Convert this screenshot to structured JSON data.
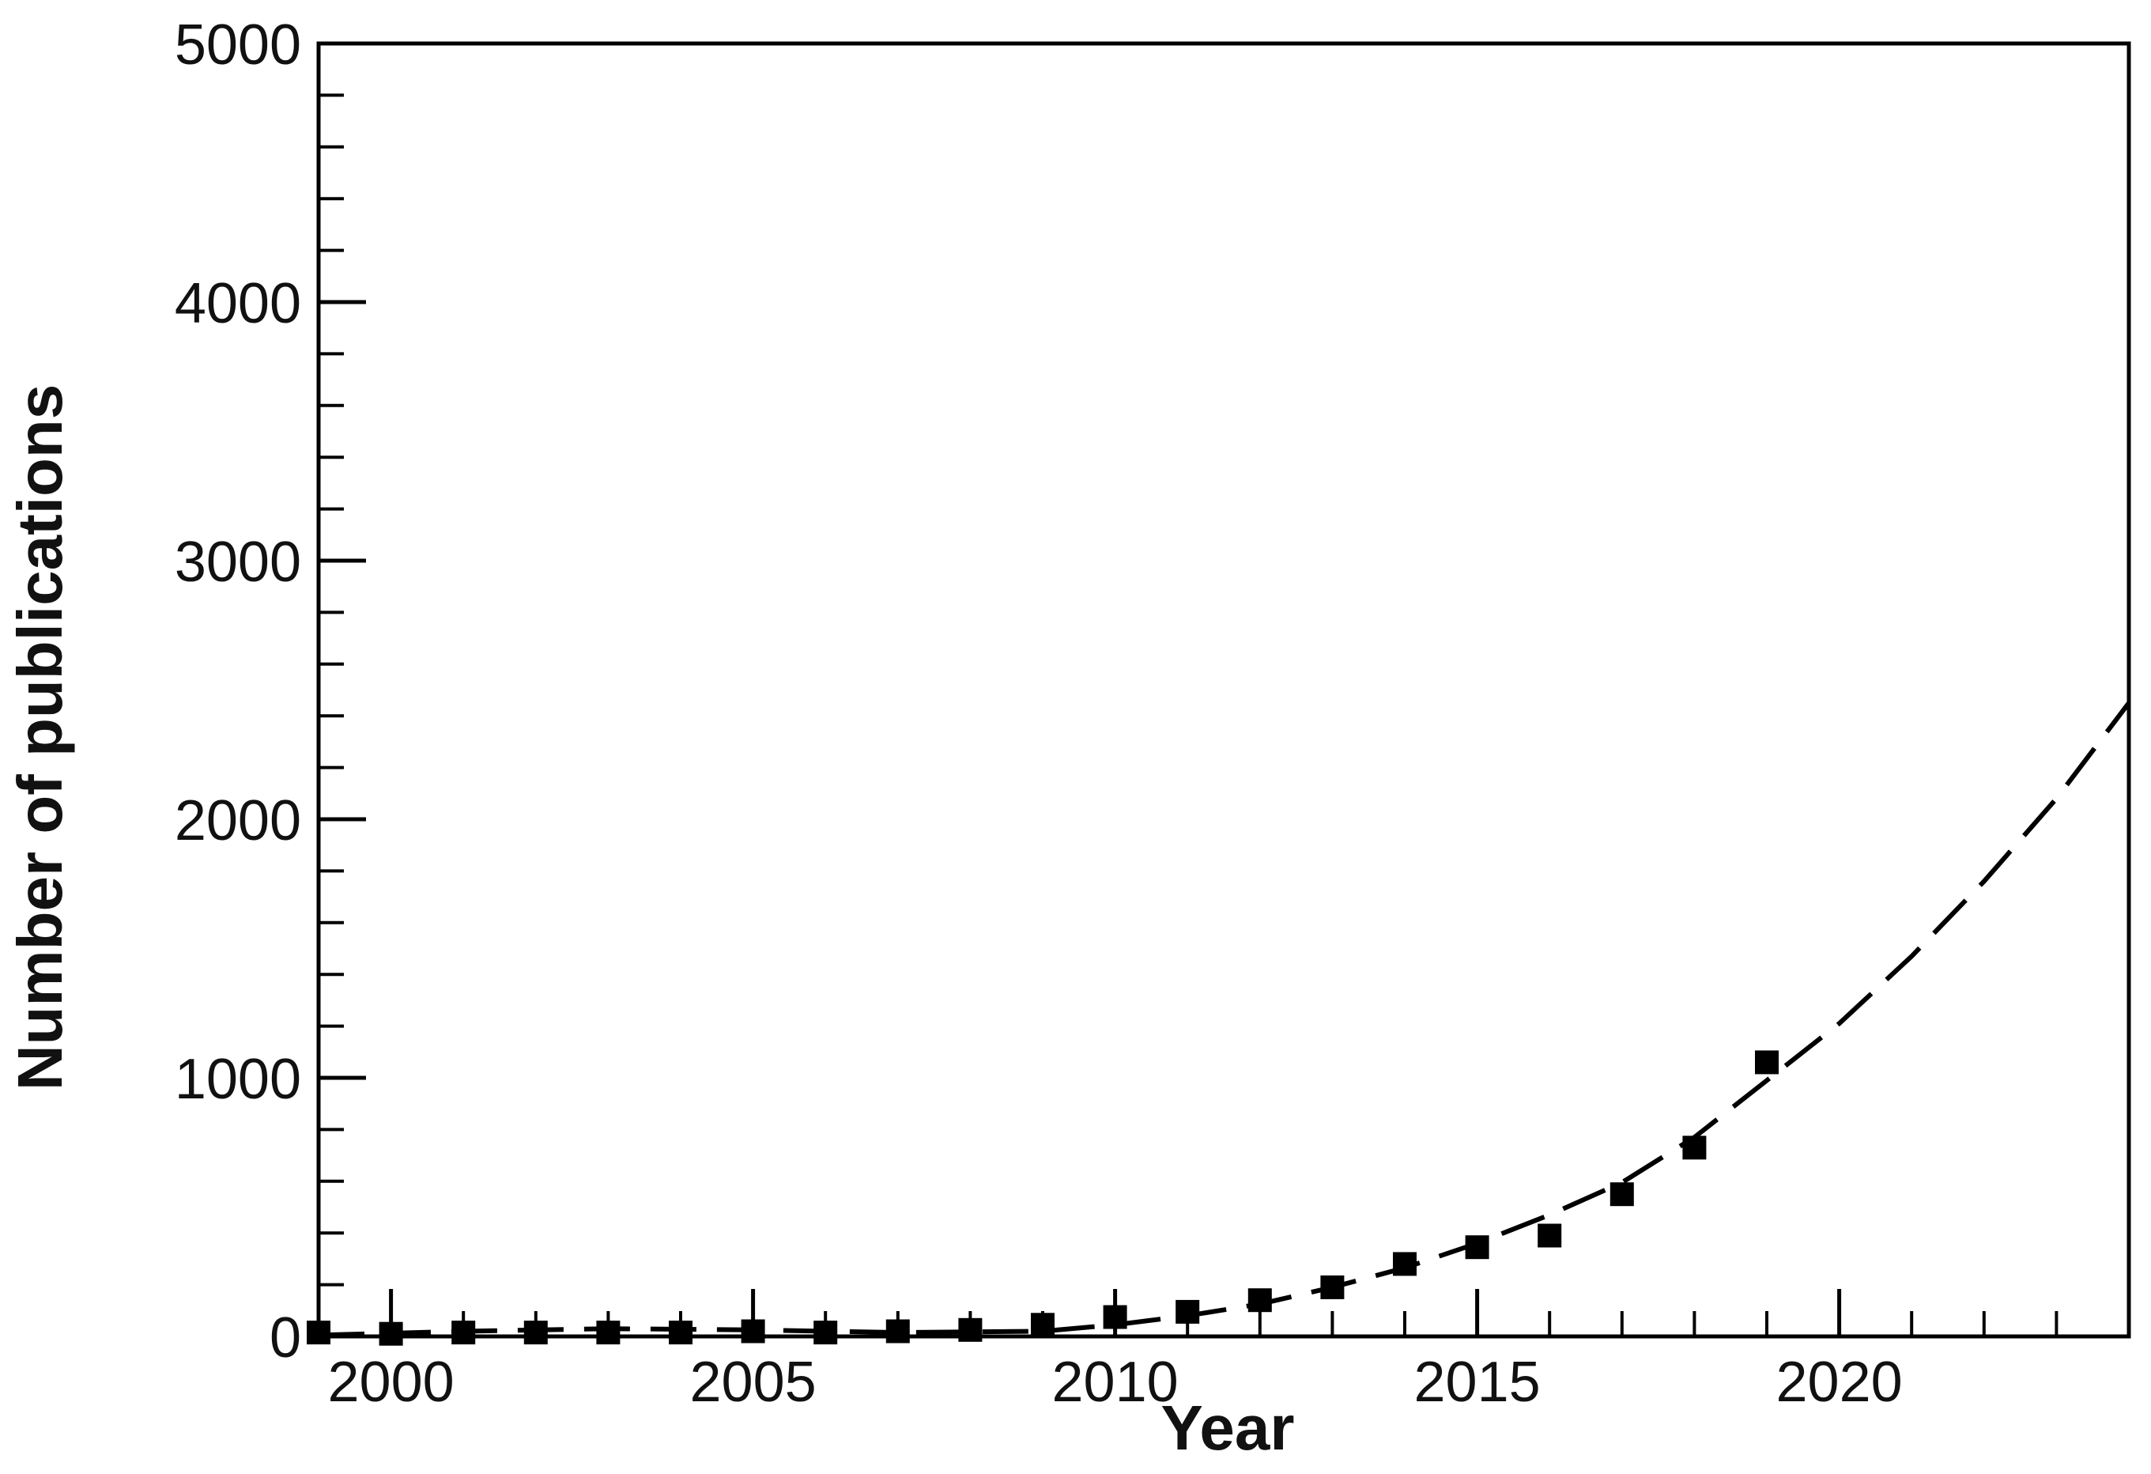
{
  "chart_data": {
    "type": "scatter",
    "title": "",
    "xlabel": "Year",
    "ylabel": "Number of publications",
    "xlim": [
      1999,
      2024
    ],
    "ylim": [
      0,
      5000
    ],
    "x_ticks": [
      2000,
      2005,
      2010,
      2015,
      2020
    ],
    "y_ticks": [
      0,
      1000,
      2000,
      3000,
      4000,
      5000
    ],
    "grid": false,
    "legend": "none",
    "series": [
      {
        "style": "markers",
        "marker": "square",
        "color": "#000000",
        "points": [
          {
            "x": 1999,
            "y": 15
          },
          {
            "x": 2000,
            "y": 10
          },
          {
            "x": 2001,
            "y": 15
          },
          {
            "x": 2002,
            "y": 15
          },
          {
            "x": 2003,
            "y": 15
          },
          {
            "x": 2004,
            "y": 15
          },
          {
            "x": 2005,
            "y": 20
          },
          {
            "x": 2006,
            "y": 15
          },
          {
            "x": 2007,
            "y": 20
          },
          {
            "x": 2008,
            "y": 25
          },
          {
            "x": 2009,
            "y": 45
          },
          {
            "x": 2010,
            "y": 75
          },
          {
            "x": 2011,
            "y": 95
          },
          {
            "x": 2012,
            "y": 140
          },
          {
            "x": 2013,
            "y": 190
          },
          {
            "x": 2014,
            "y": 280
          },
          {
            "x": 2015,
            "y": 345
          },
          {
            "x": 2016,
            "y": 390
          },
          {
            "x": 2017,
            "y": 550
          },
          {
            "x": 2018,
            "y": 730
          },
          {
            "x": 2019,
            "y": 1060
          }
        ]
      },
      {
        "style": "dashed-line",
        "color": "#000000",
        "points": [
          {
            "x": 1999,
            "y": 5
          },
          {
            "x": 2001,
            "y": 20
          },
          {
            "x": 2003,
            "y": 30
          },
          {
            "x": 2005,
            "y": 25
          },
          {
            "x": 2007,
            "y": 15
          },
          {
            "x": 2009,
            "y": 20
          },
          {
            "x": 2010,
            "y": 45
          },
          {
            "x": 2011,
            "y": 80
          },
          {
            "x": 2012,
            "y": 125
          },
          {
            "x": 2013,
            "y": 190
          },
          {
            "x": 2014,
            "y": 265
          },
          {
            "x": 2015,
            "y": 360
          },
          {
            "x": 2016,
            "y": 470
          },
          {
            "x": 2017,
            "y": 595
          },
          {
            "x": 2018,
            "y": 770
          },
          {
            "x": 2019,
            "y": 990
          },
          {
            "x": 2020,
            "y": 1210
          },
          {
            "x": 2021,
            "y": 1470
          },
          {
            "x": 2022,
            "y": 1760
          },
          {
            "x": 2023,
            "y": 2080
          },
          {
            "x": 2024,
            "y": 2450
          }
        ]
      }
    ]
  }
}
